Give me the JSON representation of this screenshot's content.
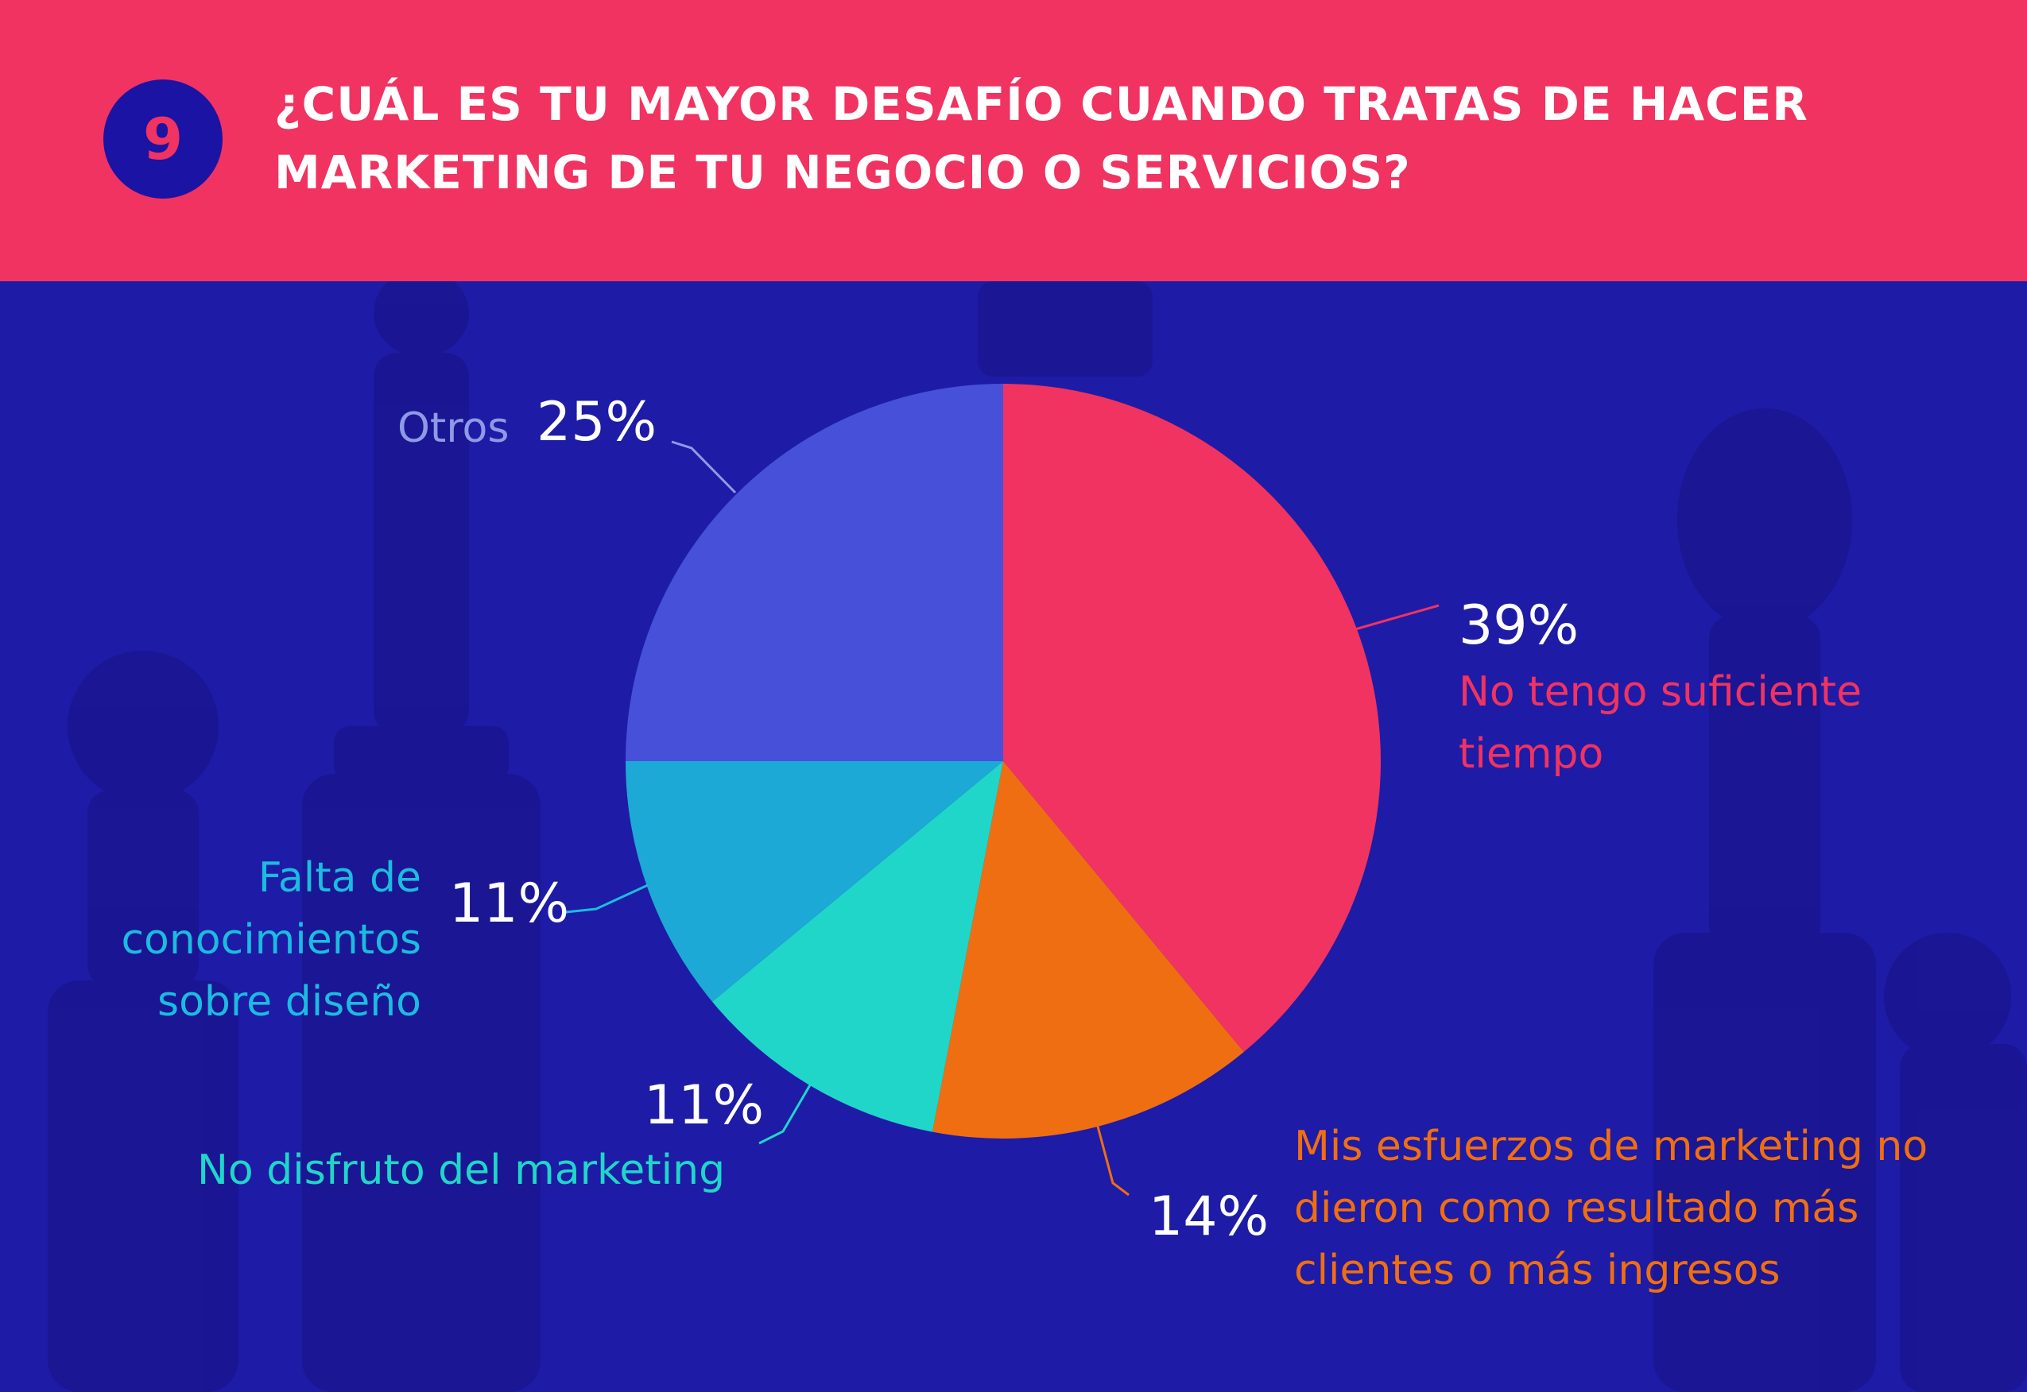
{
  "header": {
    "number": "9",
    "title_line1": "¿CUÁL ES TU MAYOR DESAFÍO CUANDO TRATAS DE HACER",
    "title_line2": "MARKETING DE TU NEGOCIO O SERVICIOS?"
  },
  "colors": {
    "header_bg": "#f03361",
    "page_bg": "#1e1ba6",
    "badge_bg": "#1a13a3"
  },
  "chart_data": {
    "type": "pie",
    "title": "¿CUÁL ES TU MAYOR DESAFÍO CUANDO TRATAS DE HACER MARKETING DE TU NEGOCIO O SERVICIOS?",
    "start": "12 o'clock, clockwise",
    "slices": [
      {
        "label": "No tengo suficiente tiempo",
        "value": 39,
        "display": "39%",
        "color": "#f03361"
      },
      {
        "label": "Mis esfuerzos de marketing no dieron como resultado más clientes o más ingresos",
        "value": 14,
        "display": "14%",
        "color": "#f06e12"
      },
      {
        "label": "No disfruto del marketing",
        "value": 11,
        "display": "11%",
        "color": "#20d6c9"
      },
      {
        "label": "Falta de conocimientos sobre diseño",
        "value": 11,
        "display": "11%",
        "color": "#1ca9d6"
      },
      {
        "label": "Otros",
        "value": 25,
        "display": "25%",
        "color": "#4650d8"
      }
    ]
  },
  "labels": {
    "tiempo": {
      "pct": "39%",
      "lines": [
        "No tengo suficiente",
        "tiempo"
      ]
    },
    "esfuerzos": {
      "pct": "14%",
      "lines": [
        "Mis esfuerzos de marketing no",
        "dieron como resultado más",
        "clientes o más ingresos"
      ]
    },
    "disfruto": {
      "pct": "11%",
      "lines": [
        "No disfruto del marketing"
      ]
    },
    "falta": {
      "pct": "11%",
      "lines": [
        "Falta de",
        "conocimientos",
        "sobre diseño"
      ]
    },
    "otros": {
      "pct": "25%",
      "lines": [
        "Otros"
      ]
    }
  }
}
